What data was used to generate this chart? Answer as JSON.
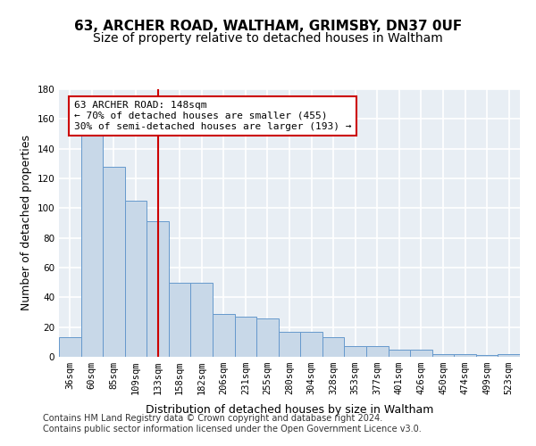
{
  "title": "63, ARCHER ROAD, WALTHAM, GRIMSBY, DN37 0UF",
  "subtitle": "Size of property relative to detached houses in Waltham",
  "xlabel": "Distribution of detached houses by size in Waltham",
  "ylabel": "Number of detached properties",
  "categories": [
    "36sqm",
    "60sqm",
    "85sqm",
    "109sqm",
    "133sqm",
    "158sqm",
    "182sqm",
    "206sqm",
    "231sqm",
    "255sqm",
    "280sqm",
    "304sqm",
    "328sqm",
    "353sqm",
    "377sqm",
    "401sqm",
    "426sqm",
    "450sqm",
    "474sqm",
    "499sqm",
    "523sqm"
  ],
  "values": [
    13,
    150,
    128,
    105,
    91,
    50,
    50,
    29,
    27,
    26,
    17,
    17,
    13,
    7,
    7,
    5,
    5,
    2,
    2,
    1,
    2
  ],
  "bar_color": "#c8d8e8",
  "bar_edge_color": "#6699cc",
  "vline_x": 4.5,
  "vline_color": "#cc0000",
  "annotation_text": "63 ARCHER ROAD: 148sqm\n← 70% of detached houses are smaller (455)\n30% of semi-detached houses are larger (193) →",
  "annotation_box_color": "#ffffff",
  "annotation_box_edge": "#cc0000",
  "ylim": [
    0,
    180
  ],
  "yticks": [
    0,
    20,
    40,
    60,
    80,
    100,
    120,
    140,
    160,
    180
  ],
  "background_color": "#e8eef4",
  "grid_color": "#ffffff",
  "footer_line1": "Contains HM Land Registry data © Crown copyright and database right 2024.",
  "footer_line2": "Contains public sector information licensed under the Open Government Licence v3.0.",
  "title_fontsize": 11,
  "subtitle_fontsize": 10,
  "xlabel_fontsize": 9,
  "ylabel_fontsize": 9,
  "tick_fontsize": 7.5,
  "annotation_fontsize": 8,
  "footer_fontsize": 7
}
